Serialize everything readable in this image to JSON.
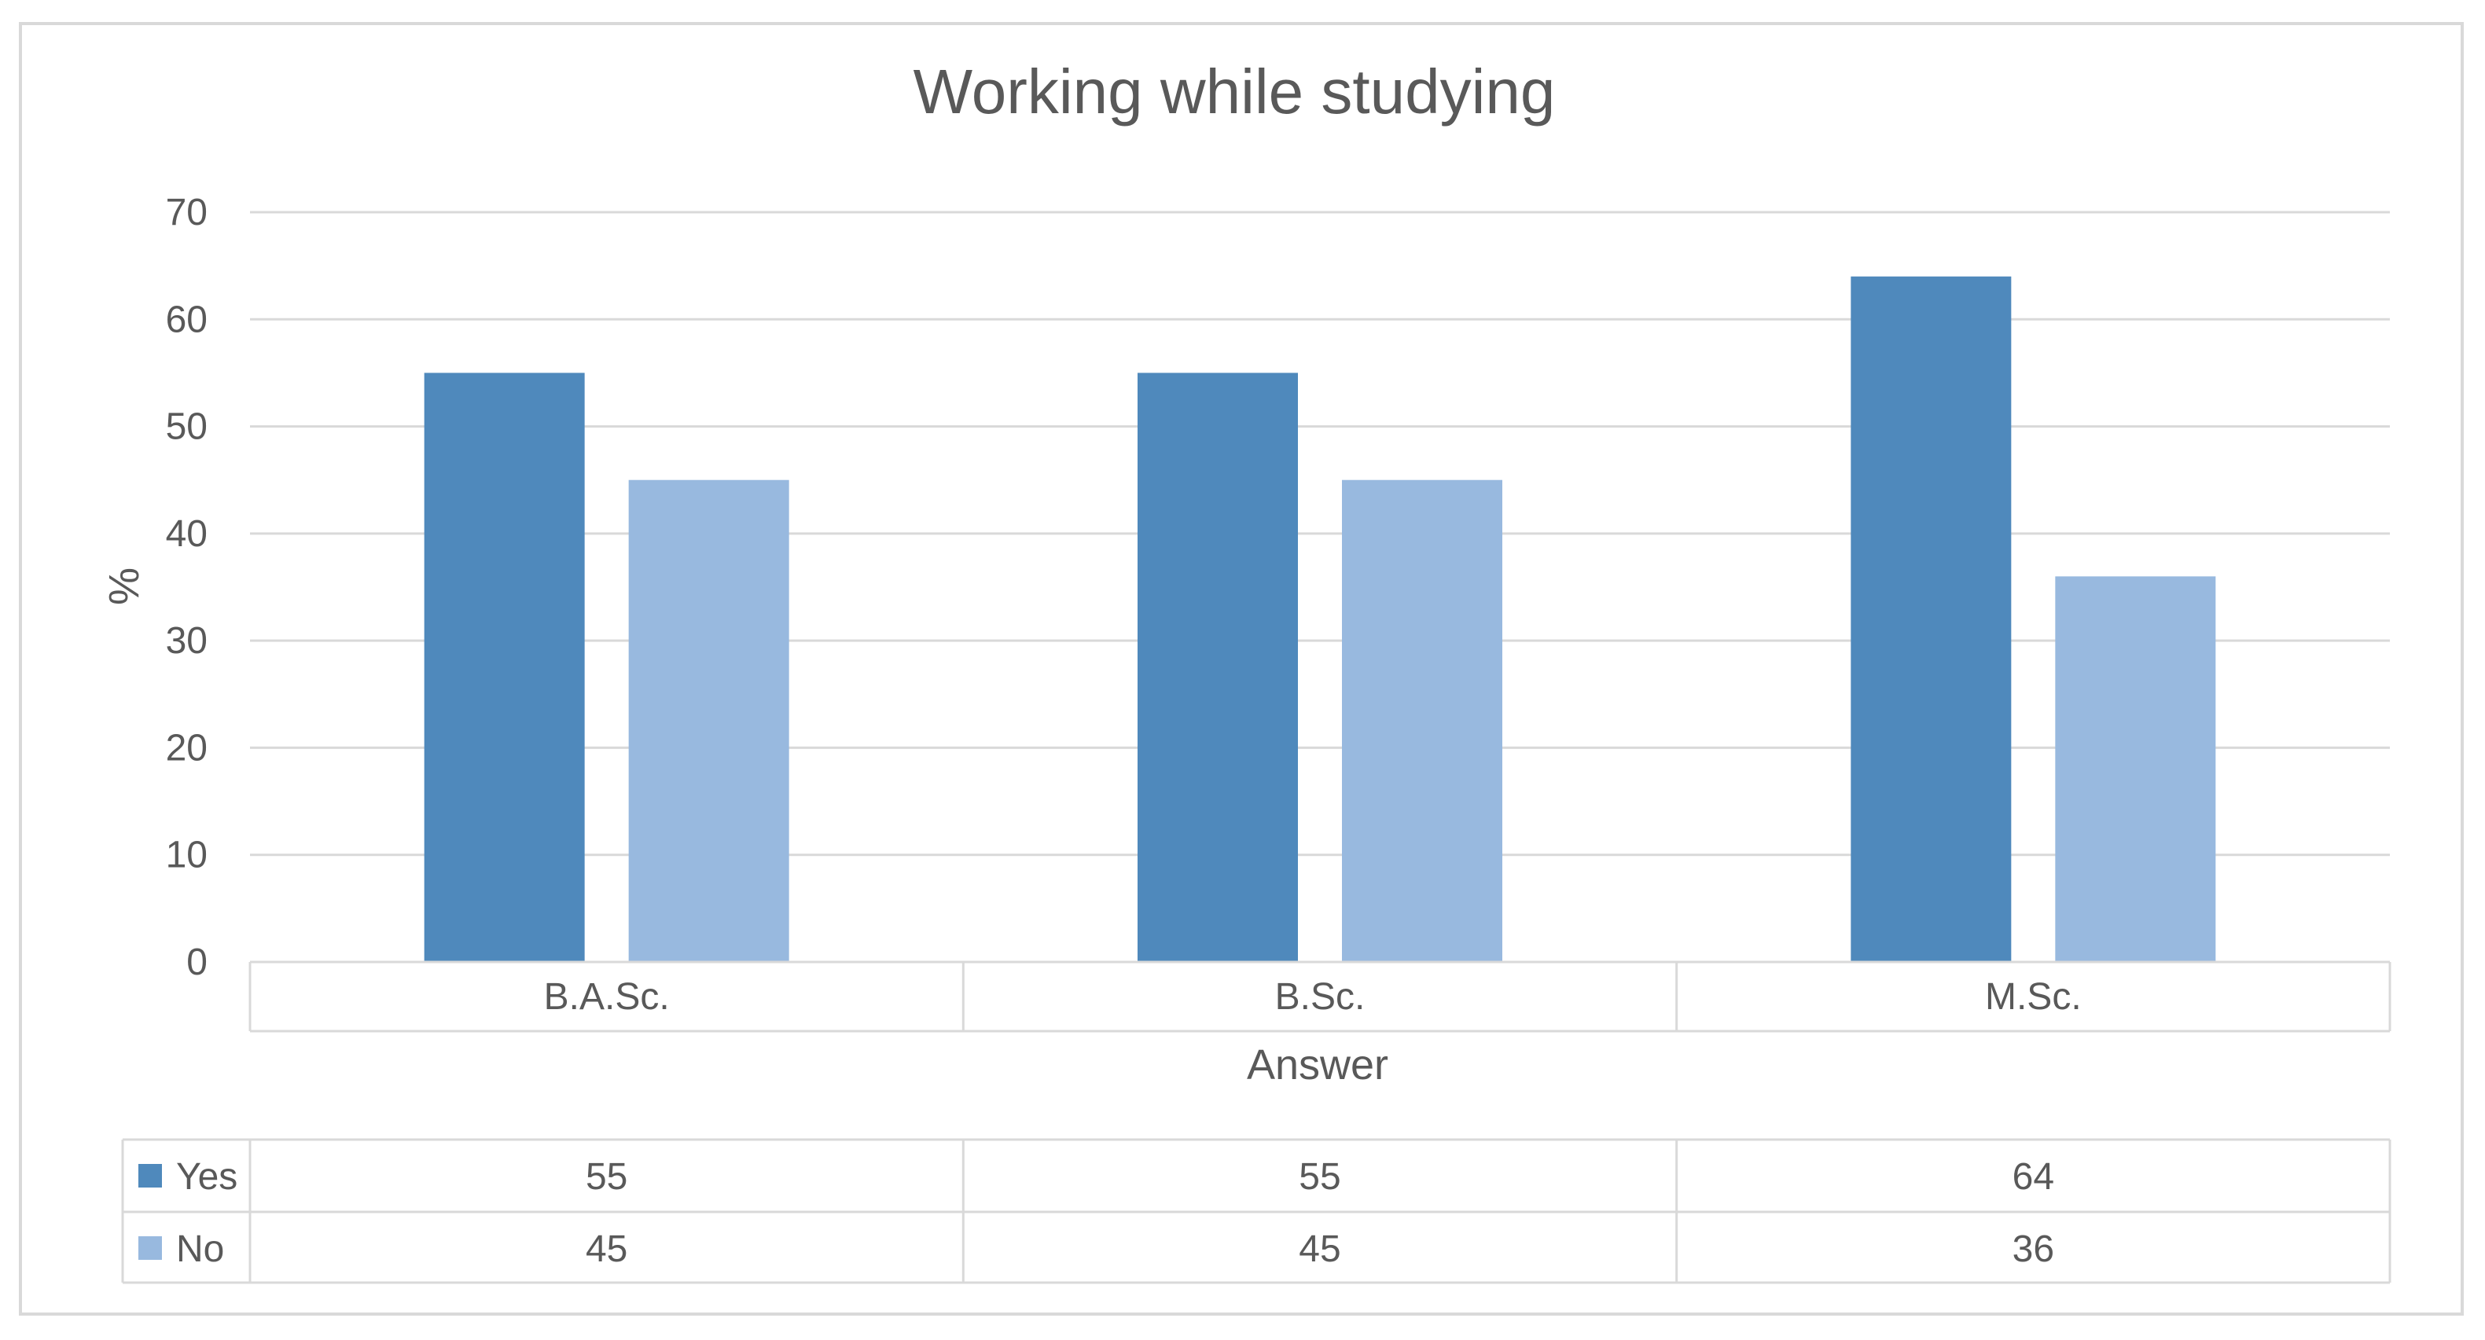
{
  "chart_data": {
    "type": "bar",
    "title": "Working while studying",
    "xlabel": "Answer",
    "ylabel": "%",
    "categories": [
      "B.A.Sc.",
      "B.Sc.",
      "M.Sc."
    ],
    "series": [
      {
        "name": "Yes",
        "values": [
          55,
          55,
          64
        ],
        "color": "#4f89bc"
      },
      {
        "name": "No",
        "values": [
          45,
          45,
          36
        ],
        "color": "#98b9df"
      }
    ],
    "ylim": [
      0,
      70
    ],
    "yticks": [
      0,
      10,
      20,
      30,
      40,
      50,
      60,
      70
    ],
    "grid": true,
    "legend": "data-table",
    "data_table": true,
    "gridline_color": "#d9d9d9",
    "text_color": "#595959"
  }
}
